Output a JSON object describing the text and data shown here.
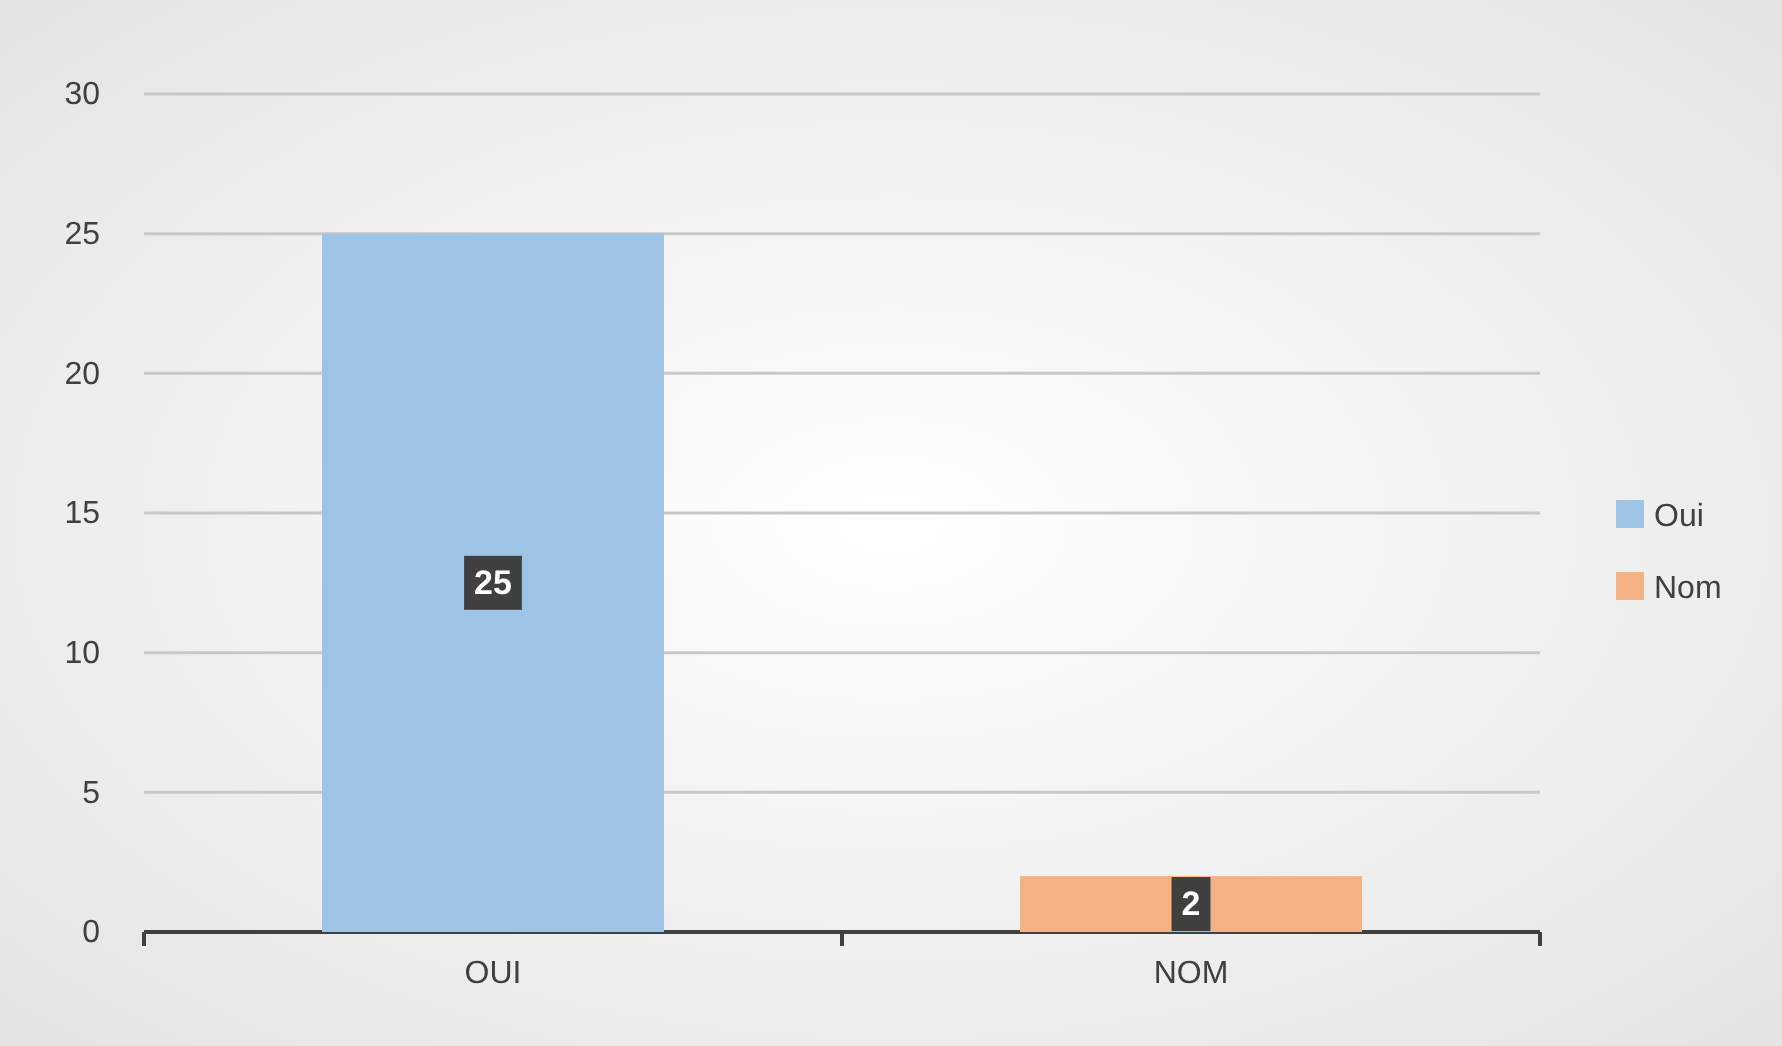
{
  "chart_data": {
    "type": "bar",
    "categories": [
      "OUI",
      "NOM"
    ],
    "series": [
      {
        "name": "Oui",
        "color": "#9dc3e6",
        "values": [
          25,
          null
        ]
      },
      {
        "name": "Nom",
        "color": "#f4b183",
        "values": [
          null,
          2
        ]
      }
    ],
    "ylim": [
      0,
      30
    ],
    "yticks": [
      0,
      5,
      10,
      15,
      20,
      25,
      30
    ],
    "grid": "y",
    "legend": "right",
    "data_labels": true
  }
}
